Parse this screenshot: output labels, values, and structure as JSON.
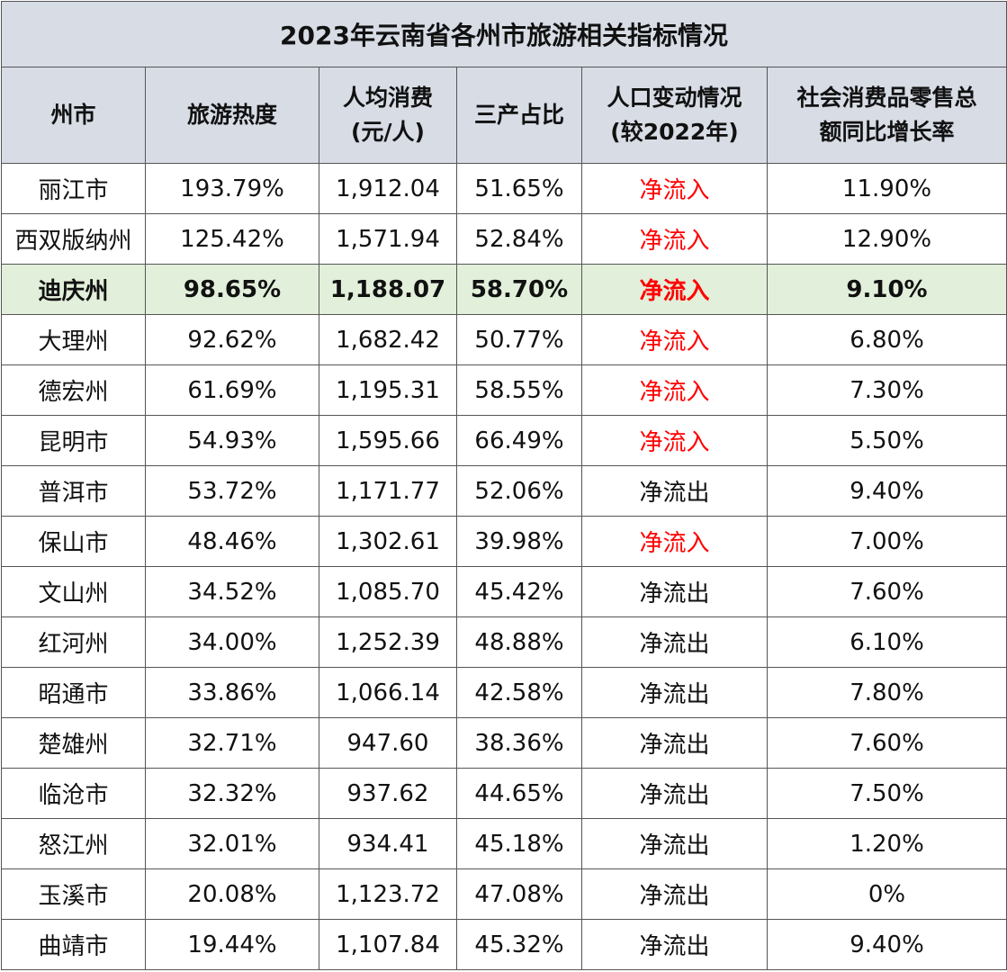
{
  "title": "2023年云南省各州市旅游相关指标情况",
  "headers": [
    [
      "州市"
    ],
    [
      "旅游热度"
    ],
    [
      "人均消费",
      "(元/人)"
    ],
    [
      "三产占比"
    ],
    [
      "人口变动情况",
      "(较2022年)"
    ],
    [
      "社会消费品零售总",
      "额同比增长率"
    ]
  ],
  "rows": [
    {
      "name": "丽江市",
      "heat": "193.79%",
      "spend": "1,912.04",
      "tertiary": "51.65%",
      "pop": "净流入",
      "retail": "11.90%"
    },
    {
      "name": "西双版纳州",
      "heat": "125.42%",
      "spend": "1,571.94",
      "tertiary": "52.84%",
      "pop": "净流入",
      "retail": "12.90%"
    },
    {
      "name": "迪庆州",
      "heat": "98.65%",
      "spend": "1,188.07",
      "tertiary": "58.70%",
      "pop": "净流入",
      "retail": "9.10%"
    },
    {
      "name": "大理州",
      "heat": "92.62%",
      "spend": "1,682.42",
      "tertiary": "50.77%",
      "pop": "净流入",
      "retail": "6.80%"
    },
    {
      "name": "德宏州",
      "heat": "61.69%",
      "spend": "1,195.31",
      "tertiary": "58.55%",
      "pop": "净流入",
      "retail": "7.30%"
    },
    {
      "name": "昆明市",
      "heat": "54.93%",
      "spend": "1,595.66",
      "tertiary": "66.49%",
      "pop": "净流入",
      "retail": "5.50%"
    },
    {
      "name": "普洱市",
      "heat": "53.72%",
      "spend": "1,171.77",
      "tertiary": "52.06%",
      "pop": "净流出",
      "retail": "9.40%"
    },
    {
      "name": "保山市",
      "heat": "48.46%",
      "spend": "1,302.61",
      "tertiary": "39.98%",
      "pop": "净流入",
      "retail": "7.00%"
    },
    {
      "name": "文山州",
      "heat": "34.52%",
      "spend": "1,085.70",
      "tertiary": "45.42%",
      "pop": "净流出",
      "retail": "7.60%"
    },
    {
      "name": "红河州",
      "heat": "34.00%",
      "spend": "1,252.39",
      "tertiary": "48.88%",
      "pop": "净流出",
      "retail": "6.10%"
    },
    {
      "name": "昭通市",
      "heat": "33.86%",
      "spend": "1,066.14",
      "tertiary": "42.58%",
      "pop": "净流出",
      "retail": "7.80%"
    },
    {
      "name": "楚雄州",
      "heat": "32.71%",
      "spend": "947.60",
      "tertiary": "38.36%",
      "pop": "净流出",
      "retail": "7.60%"
    },
    {
      "name": "临沧市",
      "heat": "32.32%",
      "spend": "937.62",
      "tertiary": "44.65%",
      "pop": "净流出",
      "retail": "7.50%"
    },
    {
      "name": "怒江州",
      "heat": "32.01%",
      "spend": "934.41",
      "tertiary": "45.18%",
      "pop": "净流出",
      "retail": "1.20%"
    },
    {
      "name": "玉溪市",
      "heat": "20.08%",
      "spend": "1,123.72",
      "tertiary": "47.08%",
      "pop": "净流出",
      "retail": "0%"
    },
    {
      "name": "曲靖市",
      "heat": "19.44%",
      "spend": "1,107.84",
      "tertiary": "45.32%",
      "pop": "净流出",
      "retail": "9.40%"
    }
  ],
  "highlight_row_index": 2,
  "colors": {
    "header_bg": "#d7dce5",
    "highlight_bg": "#e2efda",
    "net_inflow_text": "#ff0000",
    "border": "#555555"
  }
}
